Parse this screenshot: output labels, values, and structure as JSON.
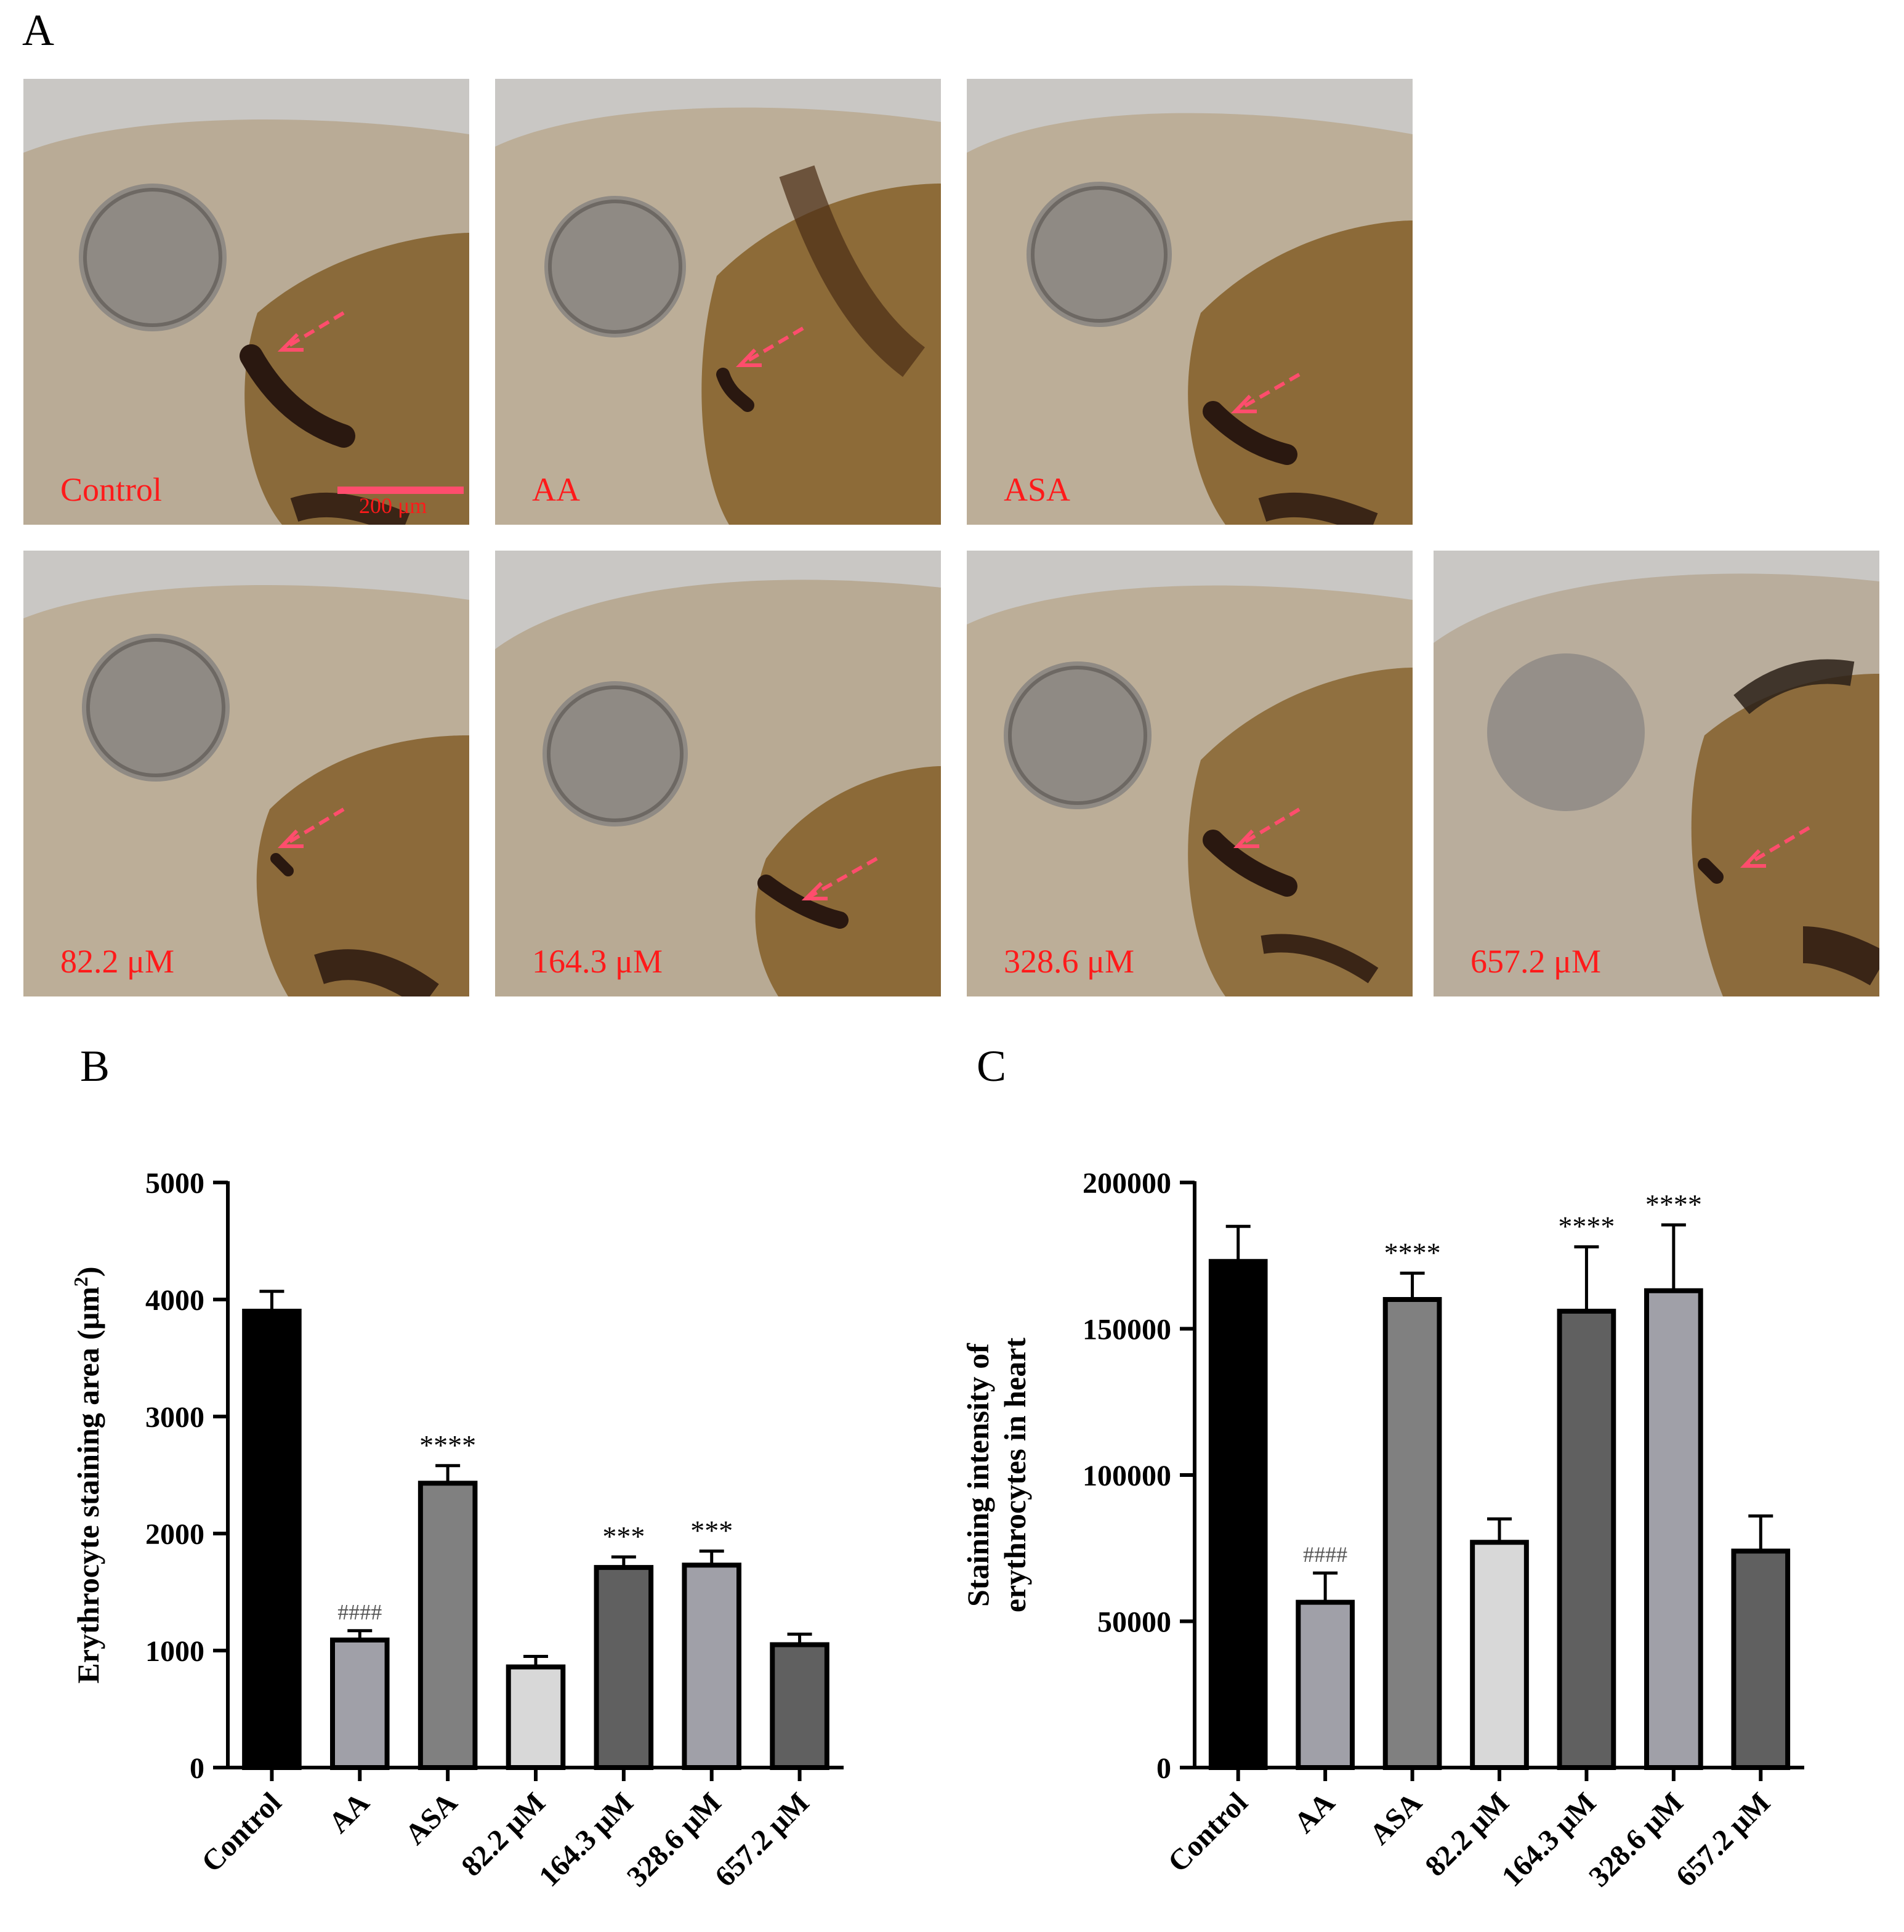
{
  "panels": {
    "a": "A",
    "b": "B",
    "c": "C"
  },
  "images": {
    "labels": [
      "Control",
      "AA",
      "ASA",
      "82.2 μM",
      "164.3 μM",
      "328.6 μM",
      "657.2 μM"
    ],
    "scale_bar_label": "200 μm",
    "label_color": "#ff1a1a",
    "arrow_color": "#ff4d6d"
  },
  "chart_data": [
    {
      "type": "bar",
      "title": "",
      "xlabel": "",
      "ylabel": "Erythrocyte staining area (μm²)",
      "categories": [
        "Control",
        "AA",
        "ASA",
        "82.2 μM",
        "164.3 μM",
        "328.6 μM",
        "657.2 μM"
      ],
      "values": [
        3900,
        1090,
        2430,
        860,
        1710,
        1730,
        1050
      ],
      "errors": [
        170,
        80,
        150,
        90,
        90,
        120,
        90
      ],
      "annotations": [
        "",
        "####",
        "****",
        "",
        "***",
        "***",
        ""
      ],
      "bar_colors": [
        "#000000",
        "#a0a0a8",
        "#808080",
        "#d8d8d8",
        "#606060",
        "#a0a0a8",
        "#606060"
      ],
      "ylim": [
        0,
        5000
      ],
      "yticks": [
        0,
        1000,
        2000,
        3000,
        4000,
        5000
      ],
      "grid": false
    },
    {
      "type": "bar",
      "title": "",
      "xlabel": "",
      "ylabel": "Staining intensity of erythrocytes in heart",
      "categories": [
        "Control",
        "AA",
        "ASA",
        "82.2 μM",
        "164.3 μM",
        "328.6 μM",
        "657.2 μM"
      ],
      "values": [
        173000,
        56500,
        160000,
        77000,
        156000,
        163000,
        74000
      ],
      "errors": [
        12000,
        10000,
        9000,
        8000,
        22000,
        22500,
        12000
      ],
      "annotations": [
        "",
        "####",
        "****",
        "",
        "****",
        "****",
        ""
      ],
      "bar_colors": [
        "#000000",
        "#a0a0a8",
        "#808080",
        "#d8d8d8",
        "#606060",
        "#a0a0a8",
        "#606060"
      ],
      "ylim": [
        0,
        200000
      ],
      "yticks": [
        0,
        50000,
        100000,
        150000,
        200000
      ],
      "grid": false
    }
  ]
}
